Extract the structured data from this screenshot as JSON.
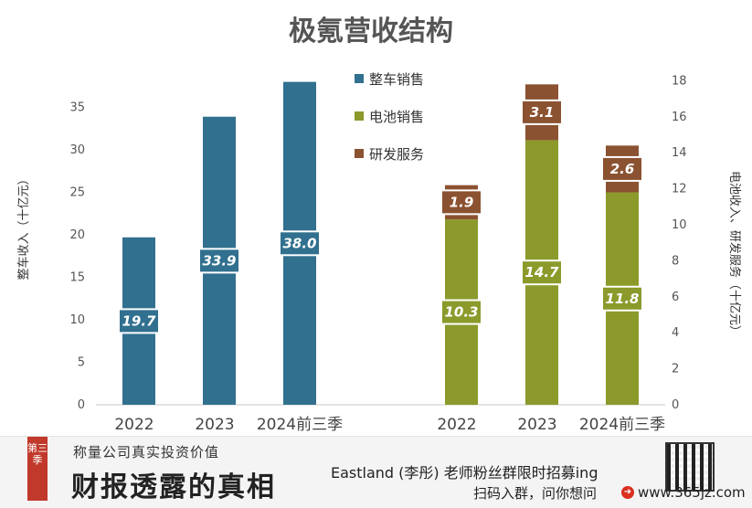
{
  "chart_data": {
    "type": "bar",
    "title": "极氪营收结构",
    "left_panel": {
      "categories": [
        "2022",
        "2023",
        "2024前三季"
      ],
      "series": [
        {
          "name": "整车销售",
          "values": [
            19.7,
            33.9,
            38.0
          ],
          "color": "#31708f"
        }
      ],
      "ylabel": "整车收入（十亿元）",
      "ylim": [
        0,
        38
      ],
      "yticks": [
        0,
        5,
        10,
        15,
        20,
        25,
        30,
        35
      ]
    },
    "right_panel": {
      "categories": [
        "2022",
        "2023",
        "2024前三季"
      ],
      "stacked": true,
      "series": [
        {
          "name": "电池销售",
          "values": [
            10.3,
            14.7,
            11.8
          ],
          "color": "#8c9a2b"
        },
        {
          "name": "研发服务",
          "values": [
            1.9,
            3.1,
            2.6
          ],
          "color": "#8b5231"
        }
      ],
      "ylabel": "电池收入、研发服务（十亿元）",
      "ylim": [
        0,
        18
      ],
      "yticks": [
        0,
        2,
        4,
        6,
        8,
        10,
        12,
        14,
        16,
        18
      ]
    },
    "legend": {
      "entries": [
        "整车销售",
        "电池销售",
        "研发服务"
      ],
      "placement": "top-center"
    },
    "grid": false,
    "label_bg_left": "#31708f",
    "label_bg_right": "#8c9a2b"
  },
  "footer": {
    "badge": "第三季",
    "subtitle": "称量公司真实投资价值",
    "main_title": "财报透露的真相",
    "promo_line1": "Eastland (李彤) 老师粉丝群限时招募ing",
    "promo_line2": "扫码入群，问你想问",
    "url": "www.365jz.com",
    "qr_icon": "qr-code-icon",
    "arrow_icon": "arrow-right-circle-icon",
    "accent_color": "#c0392b"
  }
}
